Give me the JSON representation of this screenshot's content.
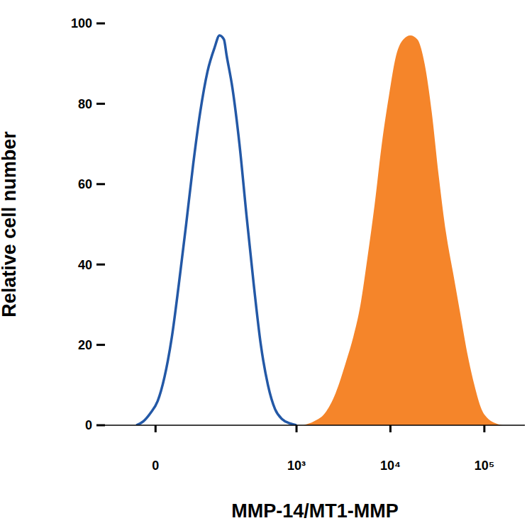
{
  "chart_data": {
    "type": "area",
    "x_label": "MMP-14/MT1-MMP",
    "y_label": "Relative cell number",
    "xlim": [
      -100,
      270000
    ],
    "xticks": [
      0,
      {
        "value": 1000,
        "label": "10³"
      },
      {
        "value": 10000,
        "label": "10⁴"
      },
      {
        "value": 100000,
        "label": "10⁵"
      }
    ],
    "ylim": [
      0,
      100
    ],
    "yticks": [
      0,
      20,
      40,
      60,
      80,
      100
    ],
    "grid": false,
    "series": [
      {
        "type": "line",
        "color": "#2358a6",
        "x": [
          -31,
          -19,
          -8,
          3.3,
          14,
          26,
          38,
          52,
          67,
          84,
          104,
          127,
          145,
          163,
          175,
          203,
          243,
          291,
          348,
          415,
          495,
          590,
          703,
          838,
          1000
        ],
        "values": [
          0,
          1,
          3,
          6,
          12,
          22,
          35,
          50,
          65,
          78,
          88,
          94,
          97,
          96,
          92,
          84,
          70,
          52,
          35,
          20,
          10,
          4,
          1.5,
          0.5,
          0
        ]
      },
      {
        "type": "area",
        "color": "#f5852a",
        "x": [
          1190,
          1546,
          2007,
          2610,
          3390,
          4030,
          4800,
          5720,
          6800,
          8100,
          9650,
          11500,
          13700,
          16300,
          19400,
          23100,
          27500,
          32700,
          39000,
          46400,
          55200,
          65700,
          78300,
          93200,
          110900,
          132000,
          157000
        ],
        "values": [
          0,
          1,
          3,
          8,
          16,
          22,
          30,
          42,
          55,
          70,
          82,
          92,
          96,
          97,
          96,
          90,
          78,
          62,
          48,
          38,
          28,
          18,
          10,
          4,
          1.5,
          0.5,
          0
        ]
      }
    ]
  }
}
